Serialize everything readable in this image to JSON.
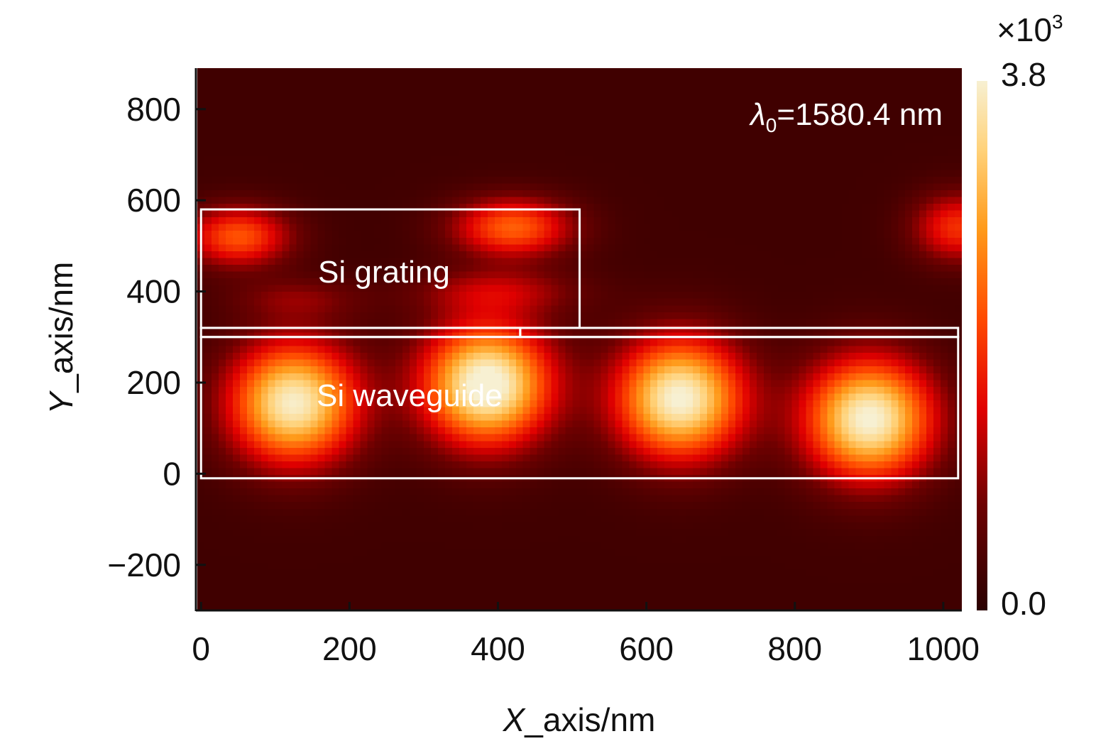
{
  "chart_data": {
    "type": "heatmap",
    "title": "",
    "xlabel": "X_axis/nm",
    "ylabel": "Y_axis/nm",
    "xlim": [
      -5,
      1025
    ],
    "ylim": [
      -300,
      890
    ],
    "x_ticks": [
      0,
      200,
      400,
      600,
      800,
      1000
    ],
    "x_tick_labels": [
      "0",
      "200",
      "400",
      "600",
      "800",
      "1000"
    ],
    "y_ticks": [
      -200,
      0,
      200,
      400,
      600,
      800
    ],
    "y_tick_labels": [
      "−200",
      "0",
      "200",
      "400",
      "600",
      "800"
    ],
    "colorbar": {
      "min_label": "0.0",
      "max_label": "3.8",
      "multiplier_label": "×10",
      "multiplier_exponent": "3",
      "min": 0,
      "max": 3.8,
      "colormap": "hot"
    },
    "annotation": {
      "lambda_symbol": "λ",
      "lambda_sub": "0",
      "text": "=1580.4 nm"
    },
    "regions": [
      {
        "label": "Si grating",
        "x": [
          0,
          510
        ],
        "y": [
          320,
          580
        ]
      },
      {
        "label": "Si waveguide",
        "x": [
          0,
          1020
        ],
        "y": [
          -10,
          300
        ]
      },
      {
        "label": "",
        "x": [
          0,
          430
        ],
        "y": [
          300,
          320
        ]
      },
      {
        "label": "",
        "x": [
          430,
          1020
        ],
        "y": [
          300,
          320
        ]
      }
    ],
    "field_peaks": [
      {
        "x": 125,
        "y": 155,
        "value": 3.5,
        "sx": 85,
        "sy": 130
      },
      {
        "x": 385,
        "y": 195,
        "value": 3.8,
        "sx": 85,
        "sy": 130
      },
      {
        "x": 645,
        "y": 165,
        "value": 3.6,
        "sx": 85,
        "sy": 130
      },
      {
        "x": 900,
        "y": 120,
        "value": 3.6,
        "sx": 85,
        "sy": 130
      },
      {
        "x": 50,
        "y": 520,
        "value": 1.9,
        "sx": 70,
        "sy": 65
      },
      {
        "x": 420,
        "y": 540,
        "value": 2.0,
        "sx": 80,
        "sy": 65
      },
      {
        "x": 1020,
        "y": 540,
        "value": 1.6,
        "sx": 60,
        "sy": 75
      },
      {
        "x": 130,
        "y": 385,
        "value": 0.6,
        "sx": 90,
        "sy": 45
      },
      {
        "x": 400,
        "y": 400,
        "value": 0.9,
        "sx": 110,
        "sy": 50
      }
    ],
    "background_value": 0.25
  }
}
